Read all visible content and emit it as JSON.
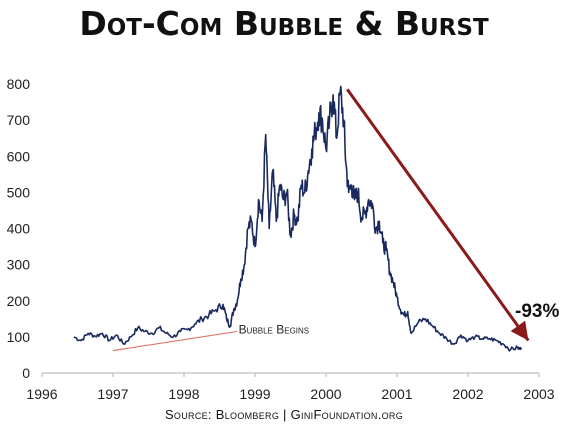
{
  "title": "Dot-Com Bubble & Burst",
  "source": "Source: Bloomberg | GiniFoundation.org",
  "colors": {
    "line": "#1b2a5e",
    "trend": "#e0766b",
    "crash_arrow": "#8b1a1a"
  },
  "chart_data": {
    "type": "line",
    "title": "Dot-Com Bubble & Burst",
    "xlabel": "",
    "ylabel": "",
    "xlim": [
      1996,
      2003
    ],
    "ylim": [
      0,
      800
    ],
    "x_ticks": [
      "1996",
      "1997",
      "1998",
      "1999",
      "2000",
      "2001",
      "2002",
      "2003"
    ],
    "y_ticks": [
      "0",
      "100",
      "200",
      "300",
      "400",
      "500",
      "600",
      "700",
      "800"
    ],
    "grid": false,
    "legend": "none",
    "series": [
      {
        "x": [
          1996.45,
          1996.55,
          1996.65,
          1996.75,
          1996.85,
          1996.95,
          1997.05,
          1997.15,
          1997.25,
          1997.35,
          1997.45,
          1997.55,
          1997.65,
          1997.75,
          1997.85,
          1997.95,
          1998.05,
          1998.15,
          1998.25,
          1998.35,
          1998.45,
          1998.55,
          1998.6,
          1998.65,
          1998.7,
          1998.75,
          1998.8,
          1998.85,
          1998.9,
          1998.95,
          1999.0,
          1999.05,
          1999.1,
          1999.15,
          1999.2,
          1999.25,
          1999.3,
          1999.35,
          1999.4,
          1999.45,
          1999.5,
          1999.55,
          1999.6,
          1999.65,
          1999.7,
          1999.75,
          1999.8,
          1999.85,
          1999.9,
          1999.95,
          2000.0,
          2000.05,
          2000.1,
          2000.15,
          2000.2,
          2000.25,
          2000.28,
          2000.32,
          2000.36,
          2000.4,
          2000.45,
          2000.5,
          2000.55,
          2000.6,
          2000.65,
          2000.7,
          2000.75,
          2000.8,
          2000.85,
          2000.9,
          2000.95,
          2001.0,
          2001.05,
          2001.1,
          2001.15,
          2001.2,
          2001.3,
          2001.4,
          2001.5,
          2001.6,
          2001.7,
          2001.8,
          2001.9,
          2002.0,
          2002.1,
          2002.2,
          2002.3,
          2002.4,
          2002.5,
          2002.6,
          2002.7,
          2002.75
        ],
        "values": [
          100,
          90,
          110,
          102,
          110,
          90,
          105,
          80,
          100,
          125,
          115,
          110,
          125,
          110,
          100,
          115,
          120,
          135,
          150,
          160,
          175,
          190,
          150,
          130,
          175,
          200,
          260,
          300,
          400,
          420,
          350,
          480,
          420,
          660,
          400,
          560,
          420,
          520,
          480,
          500,
          380,
          440,
          420,
          520,
          500,
          560,
          620,
          670,
          720,
          700,
          620,
          700,
          770,
          650,
          780,
          700,
          580,
          500,
          520,
          480,
          500,
          430,
          440,
          480,
          470,
          400,
          420,
          360,
          340,
          280,
          250,
          210,
          175,
          160,
          170,
          110,
          140,
          150,
          130,
          110,
          95,
          80,
          105,
          90,
          100,
          95,
          95,
          90,
          80,
          65,
          70,
          65
        ]
      }
    ],
    "annotations": [
      "Bubble Begins",
      "-93%"
    ]
  }
}
